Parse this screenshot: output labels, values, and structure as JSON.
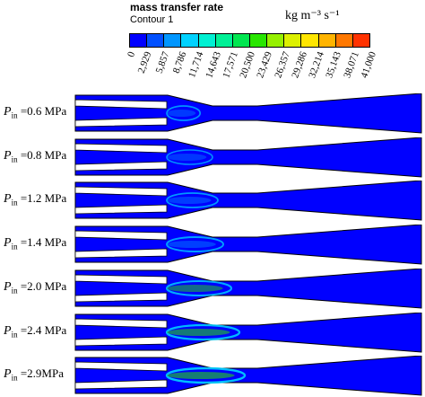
{
  "legend": {
    "title": "mass transfer rate",
    "subtitle": "Contour 1",
    "units": "kg m⁻³ s⁻¹",
    "ticks": [
      "0",
      "2,929",
      "5,857",
      "8,786",
      "11,714",
      "14,643",
      "17,571",
      "20,500",
      "23,429",
      "26,357",
      "29,286",
      "32,214",
      "35,143",
      "38,071",
      "41,000"
    ],
    "colors": [
      "#0000ff",
      "#0050ff",
      "#0096ff",
      "#00d2ff",
      "#00f0d2",
      "#00f096",
      "#00e650",
      "#28e600",
      "#96f000",
      "#dcf000",
      "#ffe600",
      "#ffb400",
      "#ff7800",
      "#ff3200"
    ]
  },
  "rows": [
    {
      "symbol": "P",
      "sub": "in",
      "value": " =0.6 MPa",
      "plume_len": 0.62,
      "intensity": 0.25
    },
    {
      "symbol": "P",
      "sub": "in",
      "value": " =0.8 MPa",
      "plume_len": 0.85,
      "intensity": 0.22
    },
    {
      "symbol": "P",
      "sub": "in",
      "value": " =1.2 MPa",
      "plume_len": 0.95,
      "intensity": 0.3
    },
    {
      "symbol": "P",
      "sub": "in",
      "value": " =1.4 MPa",
      "plume_len": 1.05,
      "intensity": 0.35
    },
    {
      "symbol": "P",
      "sub": "in",
      "value": " =2.0 MPa",
      "plume_len": 1.2,
      "intensity": 0.45
    },
    {
      "symbol": "P",
      "sub": "in",
      "value": " =2.4 MPa",
      "plume_len": 1.35,
      "intensity": 0.55
    },
    {
      "symbol": "P",
      "sub": "in",
      "value": " =2.9MPa",
      "plume_len": 1.45,
      "intensity": 0.6
    }
  ]
}
